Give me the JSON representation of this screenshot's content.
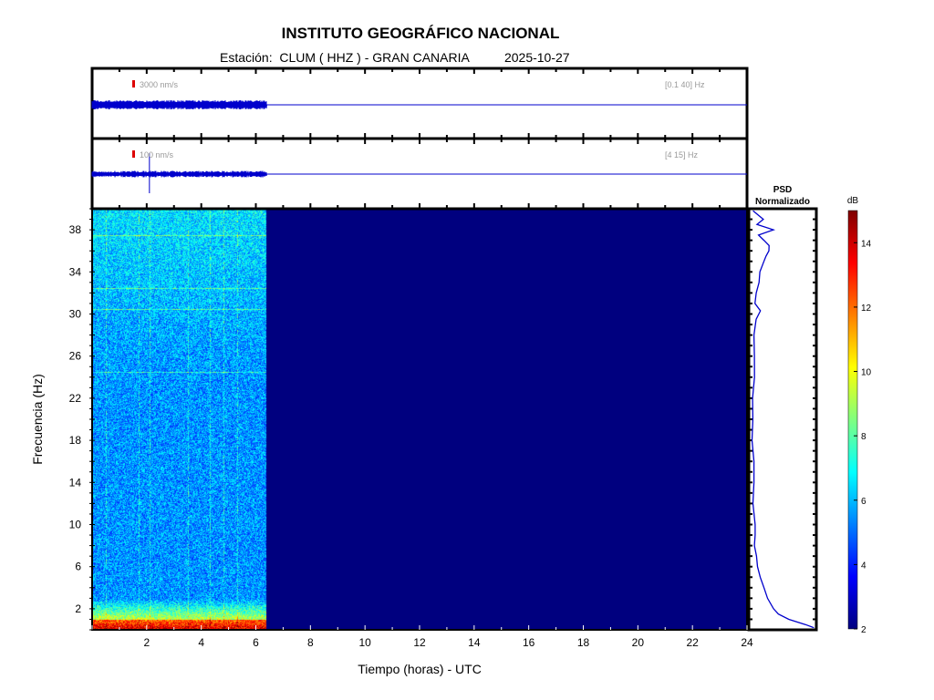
{
  "header": {
    "title": "INSTITUTO GEOGRÁFICO NACIONAL",
    "station_label": "Estación:",
    "station": "CLUM ( HHZ ) - GRAN CANARIA",
    "date": "2025-10-27"
  },
  "traces": [
    {
      "scale_label": "3000 nm/s",
      "filter_label": "[0.1 40] Hz"
    },
    {
      "scale_label": "100 nm/s",
      "filter_label": "[4 15] Hz"
    }
  ],
  "psd": {
    "title_line1": "PSD",
    "title_line2": "Normalizado"
  },
  "colors": {
    "trace": "#0000cc",
    "background_spec": "#00007f",
    "scale_marker": "#dd0000"
  },
  "chart_data": {
    "type": "heatmap",
    "title": "INSTITUTO GEOGRÁFICO NACIONAL",
    "xlabel": "Tiempo (horas) - UTC",
    "ylabel": "Frecuencia  (Hz)",
    "xlim": [
      0,
      24
    ],
    "ylim": [
      0,
      40
    ],
    "data_end_hour": 6.4,
    "x_ticks": [
      2,
      4,
      6,
      8,
      10,
      12,
      14,
      16,
      18,
      20,
      22,
      24
    ],
    "y_ticks": [
      2,
      6,
      10,
      14,
      18,
      22,
      26,
      30,
      34,
      38
    ],
    "colorbar": {
      "label": "dB",
      "range": [
        2,
        15
      ],
      "ticks": [
        2,
        4,
        6,
        8,
        10,
        12,
        14
      ]
    },
    "psd_curve": {
      "freq": [
        0.2,
        0.5,
        1,
        1.5,
        2,
        3,
        4,
        5,
        6,
        7,
        8,
        9,
        10,
        12,
        14,
        16,
        18,
        20,
        22,
        24,
        26,
        28,
        29.5,
        30.3,
        31,
        32,
        33,
        34,
        35,
        35.5,
        36,
        36.5,
        37,
        37.5,
        38,
        38.5,
        39,
        39.8
      ],
      "value": [
        1.0,
        0.85,
        0.6,
        0.42,
        0.35,
        0.27,
        0.2,
        0.14,
        0.1,
        0.08,
        0.07,
        0.08,
        0.06,
        0.05,
        0.06,
        0.04,
        0.03,
        0.03,
        0.04,
        0.05,
        0.05,
        0.06,
        0.08,
        0.14,
        0.08,
        0.1,
        0.14,
        0.15,
        0.2,
        0.25,
        0.3,
        0.28,
        0.22,
        0.12,
        0.35,
        0.1,
        0.2,
        0.05
      ]
    },
    "hline_features_hz": [
      37.5,
      32.5,
      30.5,
      24.5
    ],
    "vline_features_hours": [
      0.5,
      1.7,
      2.1,
      3.5,
      4.3,
      4.8,
      5.3
    ]
  }
}
